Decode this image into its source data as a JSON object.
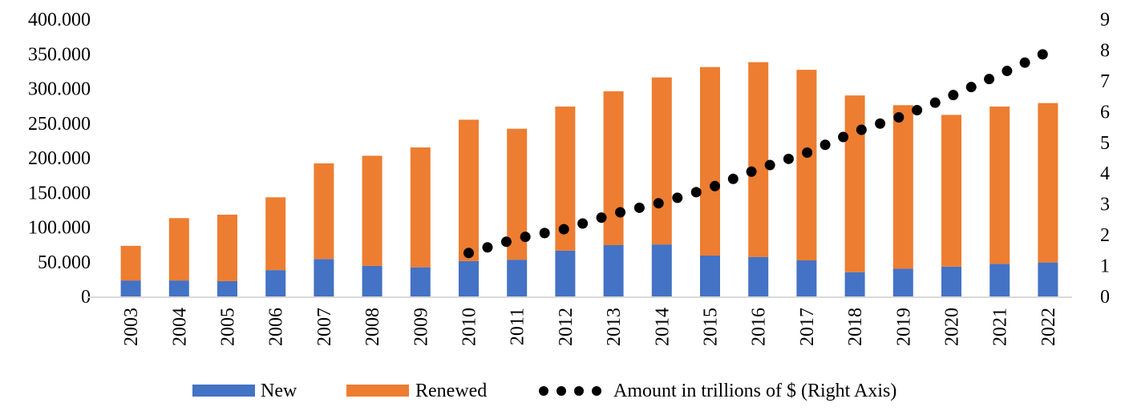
{
  "chart_data": {
    "type": "bar",
    "stacked": true,
    "categories": [
      "2003",
      "2004",
      "2005",
      "2006",
      "2007",
      "2008",
      "2009",
      "2010",
      "2011",
      "2012",
      "2013",
      "2014",
      "2015",
      "2016",
      "2017",
      "2018",
      "2019",
      "2020",
      "2021",
      "2022"
    ],
    "series": [
      {
        "name": "New",
        "axis": "left",
        "color": "#4472C4",
        "values": [
          23000,
          23000,
          22000,
          38000,
          54000,
          44000,
          42000,
          51000,
          53000,
          66000,
          74000,
          75000,
          59000,
          57000,
          52000,
          35000,
          40000,
          43000,
          47000,
          49000
        ]
      },
      {
        "name": "Renewed",
        "axis": "left",
        "color": "#ED7D31",
        "values": [
          50000,
          90000,
          96000,
          105000,
          138000,
          159000,
          173000,
          204000,
          189000,
          208000,
          222000,
          241000,
          272000,
          281000,
          275000,
          255000,
          236000,
          219000,
          227000,
          230000
        ]
      },
      {
        "name": "Amount in trillions of $ (Right Axis)",
        "axis": "right",
        "type": "line",
        "style": "round-dot",
        "color": "#000000",
        "x": [
          "2010",
          "2011",
          "2012",
          "2013",
          "2014",
          "2015",
          "2016",
          "2017",
          "2018",
          "2019",
          "2020",
          "2021",
          "2022"
        ],
        "values": [
          1.41,
          1.88,
          2.19,
          2.68,
          3.05,
          3.52,
          4.14,
          4.66,
          5.34,
          5.86,
          6.51,
          7.21,
          7.94
        ]
      }
    ],
    "ylim": [
      0,
      400000
    ],
    "y2lim": [
      0,
      9
    ],
    "yticks": [
      "0",
      "50.000",
      "100.000",
      "150.000",
      "200.000",
      "250.000",
      "300.000",
      "350.000",
      "400.000"
    ],
    "y2ticks": [
      "0",
      "1",
      "2",
      "3",
      "4",
      "5",
      "6",
      "7",
      "8",
      "9"
    ],
    "grid": false,
    "legend_position": "bottom",
    "title": "",
    "xlabel": "",
    "ylabel": "",
    "y2label": ""
  }
}
